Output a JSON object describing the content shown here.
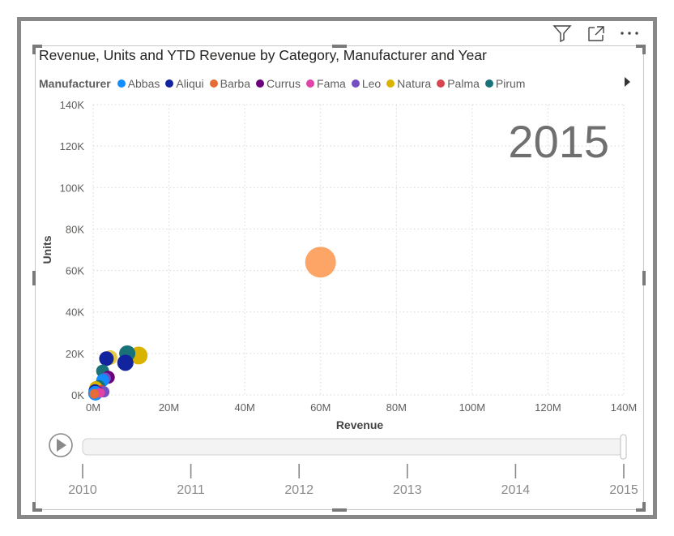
{
  "header": {
    "filter_icon": "filter-icon",
    "focus_icon": "focus-mode-icon",
    "more_icon": "more-options-icon"
  },
  "chart_data": {
    "type": "scatter",
    "title": "Revenue, Units and YTD Revenue by Category, Manufacturer and Year",
    "xlabel": "Revenue",
    "ylabel": "Units",
    "xlim": [
      0,
      140000000
    ],
    "ylim": [
      0,
      140000
    ],
    "x_ticks": [
      {
        "value": 0,
        "label": "0M"
      },
      {
        "value": 20000000,
        "label": "20M"
      },
      {
        "value": 40000000,
        "label": "40M"
      },
      {
        "value": 60000000,
        "label": "60M"
      },
      {
        "value": 80000000,
        "label": "80M"
      },
      {
        "value": 100000000,
        "label": "100M"
      },
      {
        "value": 120000000,
        "label": "120M"
      },
      {
        "value": 140000000,
        "label": "140M"
      }
    ],
    "y_ticks": [
      {
        "value": 0,
        "label": "0K"
      },
      {
        "value": 20000,
        "label": "20K"
      },
      {
        "value": 40000,
        "label": "40K"
      },
      {
        "value": 60000,
        "label": "60K"
      },
      {
        "value": 80000,
        "label": "80K"
      },
      {
        "value": 100000,
        "label": "100K"
      },
      {
        "value": 120000,
        "label": "120K"
      },
      {
        "value": 140000,
        "label": "140K"
      }
    ],
    "grid": true,
    "year_watermark": "2015",
    "legend": {
      "title": "Manufacturer",
      "placement": "top",
      "items": [
        {
          "name": "Abbas",
          "color": "#118dff"
        },
        {
          "name": "Aliqui",
          "color": "#12239e"
        },
        {
          "name": "Barba",
          "color": "#e66c37"
        },
        {
          "name": "Currus",
          "color": "#6b007b"
        },
        {
          "name": "Fama",
          "color": "#e044a7"
        },
        {
          "name": "Leo",
          "color": "#744ec2"
        },
        {
          "name": "Natura",
          "color": "#d9b300"
        },
        {
          "name": "Palma",
          "color": "#d64550"
        },
        {
          "name": "Pirum",
          "color": "#197278"
        }
      ]
    },
    "points": [
      {
        "manufacturer": "Barba",
        "color": "#fda566",
        "x": 60000000,
        "y": 64000,
        "size": 19
      },
      {
        "manufacturer": "Natura",
        "color": "#d9b300",
        "x": 12000000,
        "y": 19000,
        "size": 11
      },
      {
        "manufacturer": "Pirum",
        "color": "#197278",
        "x": 9000000,
        "y": 20000,
        "size": 10
      },
      {
        "manufacturer": "Aliqui",
        "color": "#12239e",
        "x": 8500000,
        "y": 15500,
        "size": 10
      },
      {
        "manufacturer": "Natura",
        "color": "#e8c84a",
        "x": 4500000,
        "y": 18000,
        "size": 9
      },
      {
        "manufacturer": "Aliqui",
        "color": "#12239e",
        "x": 3500000,
        "y": 17500,
        "size": 9
      },
      {
        "manufacturer": "Pirum",
        "color": "#197278",
        "x": 2500000,
        "y": 11500,
        "size": 8
      },
      {
        "manufacturer": "Currus",
        "color": "#6b007b",
        "x": 4000000,
        "y": 8500,
        "size": 8
      },
      {
        "manufacturer": "Leo",
        "color": "#744ec2",
        "x": 3200000,
        "y": 8000,
        "size": 7
      },
      {
        "manufacturer": "Abbas",
        "color": "#118dff",
        "x": 2500000,
        "y": 7000,
        "size": 8
      },
      {
        "manufacturer": "Pirum",
        "color": "#197278",
        "x": 1500000,
        "y": 4000,
        "size": 8
      },
      {
        "manufacturer": "Natura",
        "color": "#d9b300",
        "x": 700000,
        "y": 3500,
        "size": 8
      },
      {
        "manufacturer": "Aliqui",
        "color": "#12239e",
        "x": 500000,
        "y": 2000,
        "size": 8
      },
      {
        "manufacturer": "Palma",
        "color": "#d64550",
        "x": 2200000,
        "y": 2000,
        "size": 7
      },
      {
        "manufacturer": "Leo",
        "color": "#744ec2",
        "x": 2800000,
        "y": 1500,
        "size": 7
      },
      {
        "manufacturer": "Currus",
        "color": "#6b007b",
        "x": 1200000,
        "y": 1500,
        "size": 7
      },
      {
        "manufacturer": "Abbas",
        "color": "#118dff",
        "x": 600000,
        "y": 800,
        "size": 9
      },
      {
        "manufacturer": "Fama",
        "color": "#e044a7",
        "x": 1800000,
        "y": 1000,
        "size": 6
      },
      {
        "manufacturer": "Barba",
        "color": "#e66c37",
        "x": 300000,
        "y": 500,
        "size": 6
      }
    ]
  },
  "play_axis": {
    "play_icon": "play-icon",
    "years": [
      "2010",
      "2011",
      "2012",
      "2013",
      "2014",
      "2015"
    ],
    "min": 2010,
    "max": 2015,
    "current": 2015
  }
}
